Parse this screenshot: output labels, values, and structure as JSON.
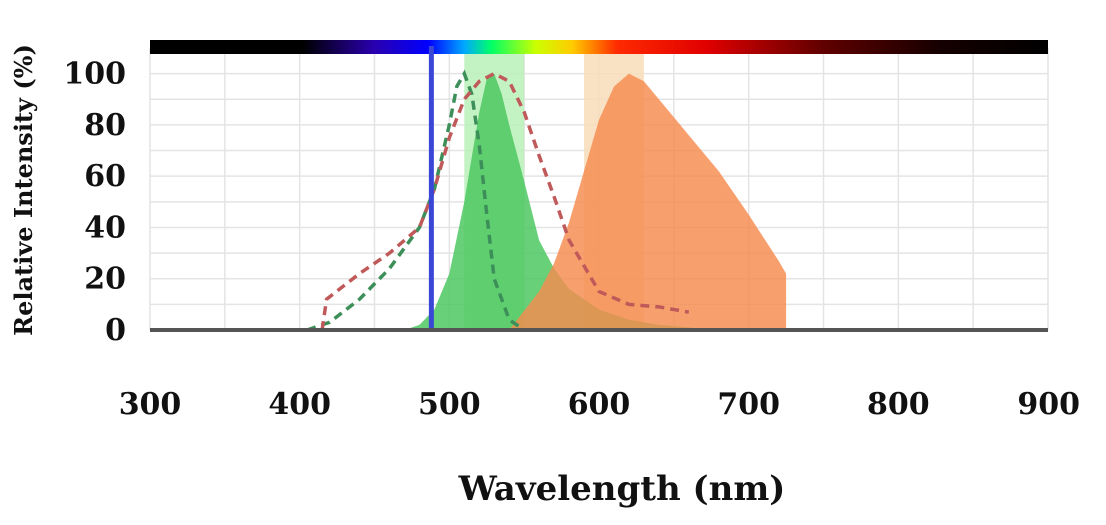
{
  "chart_data": {
    "type": "area",
    "xlabel": "Wavelength (nm)",
    "ylabel": "Relative Intensity (%)",
    "xlim": [
      300,
      900
    ],
    "ylim": [
      0,
      110
    ],
    "x_ticks": [
      300,
      400,
      500,
      600,
      700,
      800,
      900
    ],
    "y_ticks": [
      0,
      20,
      40,
      60,
      80,
      100
    ],
    "grid": true,
    "spectrum_bar": "top",
    "excitation_line": {
      "x": 488,
      "color": "#3a47d6"
    },
    "filter_bands": [
      {
        "range": [
          510,
          550
        ],
        "color": "#b9f0b9"
      },
      {
        "range": [
          590,
          630
        ],
        "color": "#f8ddb8"
      }
    ],
    "series": [
      {
        "style": "dashed",
        "color": "#3d8f5a",
        "x": [
          405,
          420,
          440,
          460,
          480,
          490,
          500,
          505,
          510,
          515,
          520,
          525,
          530,
          540,
          550
        ],
        "y": [
          0,
          3,
          12,
          24,
          40,
          55,
          80,
          95,
          100,
          92,
          72,
          45,
          20,
          4,
          0
        ]
      },
      {
        "style": "dashed",
        "color": "#c05a5a",
        "x": [
          415,
          418,
          440,
          460,
          480,
          490,
          500,
          510,
          520,
          530,
          540,
          550,
          560,
          570,
          580,
          600,
          620,
          640,
          660
        ],
        "y": [
          0,
          12,
          22,
          30,
          40,
          55,
          75,
          90,
          97,
          100,
          97,
          85,
          68,
          52,
          35,
          15,
          10,
          9,
          7
        ]
      },
      {
        "style": "filled",
        "color": "#48c65d",
        "x": [
          460,
          470,
          480,
          490,
          500,
          510,
          520,
          525,
          530,
          535,
          540,
          550,
          560,
          570,
          580,
          600,
          620,
          640,
          660,
          680,
          690
        ],
        "y": [
          0,
          0,
          2,
          8,
          22,
          50,
          85,
          98,
          100,
          92,
          80,
          58,
          35,
          24,
          16,
          8,
          4,
          2,
          1,
          0,
          0
        ]
      },
      {
        "style": "filled",
        "color": "#f58b4e",
        "x": [
          540,
          560,
          570,
          580,
          590,
          600,
          610,
          620,
          630,
          640,
          660,
          680,
          700,
          720,
          725,
          725
        ],
        "y": [
          0,
          15,
          26,
          42,
          62,
          82,
          95,
          100,
          97,
          90,
          76,
          62,
          45,
          27,
          22,
          0
        ]
      }
    ]
  }
}
